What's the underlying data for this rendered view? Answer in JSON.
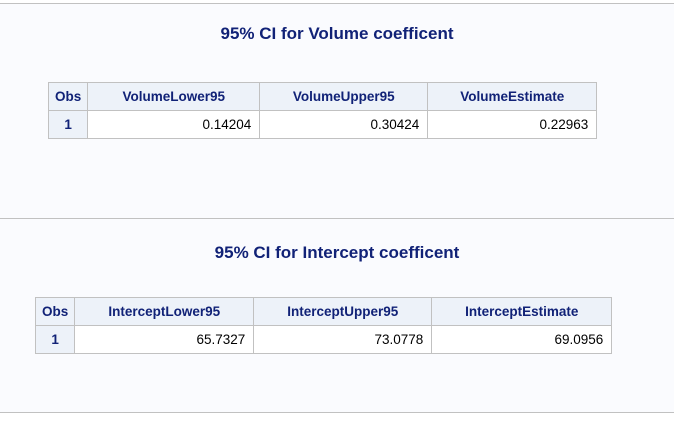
{
  "colors": {
    "title": "#112277",
    "header_bg": "#edf2f9",
    "panel_bg": "#fafbfe",
    "border": "#c1c1c1"
  },
  "volume_panel": {
    "title": "95% CI for Volume coefficent",
    "headers": [
      "Obs",
      "VolumeLower95",
      "VolumeUpper95",
      "VolumeEstimate"
    ],
    "rows": [
      {
        "obs": "1",
        "lower": "0.14204",
        "upper": "0.30424",
        "estimate": "0.22963"
      }
    ]
  },
  "intercept_panel": {
    "title": "95% CI for Intercept coefficent",
    "headers": [
      "Obs",
      "InterceptLower95",
      "InterceptUpper95",
      "InterceptEstimate"
    ],
    "rows": [
      {
        "obs": "1",
        "lower": "65.7327",
        "upper": "73.0778",
        "estimate": "69.0956"
      }
    ]
  }
}
